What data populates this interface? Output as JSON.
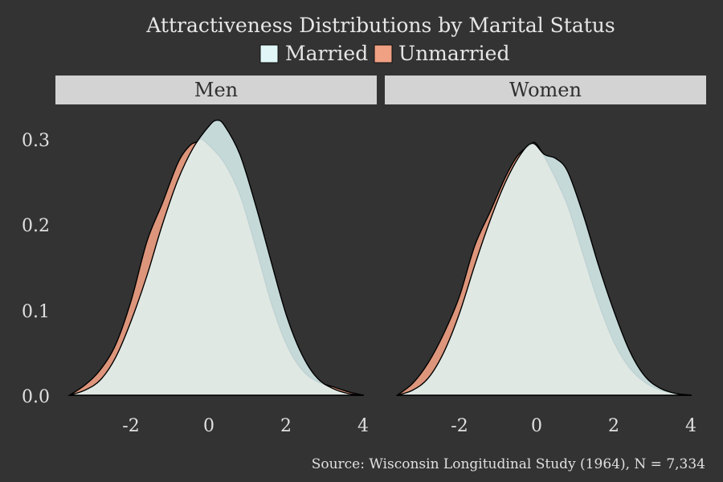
{
  "chart_data": {
    "type": "area",
    "title": "Attractiveness Distributions by Marital Status",
    "caption": "Source: Wisconsin Longitudinal Study (1964), N = 7,334",
    "legend": {
      "placement": "top",
      "entries": [
        {
          "label": "Married",
          "color": "#e1f7f7"
        },
        {
          "label": "Unmarried",
          "color": "#f0a083"
        }
      ]
    },
    "xlim": [
      -3.6,
      4.2
    ],
    "ylim": [
      0,
      0.33
    ],
    "x_ticks": [
      "-2",
      "0",
      "2",
      "4"
    ],
    "y_ticks": [
      "0.0",
      "0.1",
      "0.2",
      "0.3"
    ],
    "x_tick_values": [
      -2,
      0,
      2,
      4
    ],
    "y_tick_values": [
      0.0,
      0.1,
      0.2,
      0.3
    ],
    "grid": false,
    "panels": [
      {
        "strip": "Men",
        "series": [
          {
            "name": "Unmarried",
            "color": "#f0a083",
            "x": [
              -3.6,
              -3.2,
              -2.8,
              -2.4,
              -2.0,
              -1.6,
              -1.2,
              -0.8,
              -0.5,
              -0.3,
              -0.2,
              0.0,
              0.4,
              0.8,
              1.2,
              1.6,
              2.0,
              2.4,
              2.8,
              3.2,
              3.6,
              4.0
            ],
            "y": [
              0.0,
              0.012,
              0.03,
              0.06,
              0.112,
              0.18,
              0.225,
              0.272,
              0.292,
              0.297,
              0.3,
              0.293,
              0.272,
              0.235,
              0.175,
              0.11,
              0.06,
              0.03,
              0.016,
              0.01,
              0.004,
              0.0
            ]
          },
          {
            "name": "Married",
            "color": "#e1f7f7",
            "x": [
              -3.6,
              -3.2,
              -2.8,
              -2.4,
              -2.0,
              -1.6,
              -1.2,
              -0.8,
              -0.4,
              0.0,
              0.2,
              0.4,
              0.8,
              1.2,
              1.6,
              2.0,
              2.4,
              2.8,
              3.2,
              3.6,
              4.0
            ],
            "y": [
              0.0,
              0.006,
              0.018,
              0.045,
              0.088,
              0.14,
              0.2,
              0.252,
              0.29,
              0.315,
              0.322,
              0.316,
              0.282,
              0.224,
              0.158,
              0.094,
              0.048,
              0.02,
              0.008,
              0.002,
              0.0
            ]
          }
        ]
      },
      {
        "strip": "Women",
        "series": [
          {
            "name": "Unmarried",
            "color": "#f0a083",
            "x": [
              -3.6,
              -3.2,
              -2.8,
              -2.4,
              -2.0,
              -1.6,
              -1.2,
              -0.8,
              -0.5,
              -0.2,
              0.0,
              0.4,
              0.8,
              1.2,
              1.6,
              2.0,
              2.4,
              2.8,
              3.2,
              3.6,
              4.0
            ],
            "y": [
              0.0,
              0.014,
              0.038,
              0.072,
              0.115,
              0.175,
              0.215,
              0.256,
              0.28,
              0.292,
              0.294,
              0.262,
              0.222,
              0.165,
              0.108,
              0.062,
              0.032,
              0.015,
              0.006,
              0.002,
              0.0
            ]
          },
          {
            "name": "Married",
            "color": "#e1f7f7",
            "x": [
              -3.6,
              -3.2,
              -2.8,
              -2.4,
              -2.0,
              -1.6,
              -1.2,
              -0.8,
              -0.4,
              -0.1,
              0.2,
              0.5,
              0.8,
              1.2,
              1.6,
              2.0,
              2.4,
              2.8,
              3.2,
              3.6,
              4.0
            ],
            "y": [
              0.0,
              0.006,
              0.02,
              0.05,
              0.095,
              0.152,
              0.205,
              0.25,
              0.283,
              0.295,
              0.282,
              0.277,
              0.262,
              0.212,
              0.152,
              0.098,
              0.052,
              0.022,
              0.008,
              0.002,
              0.0
            ]
          }
        ]
      }
    ]
  }
}
